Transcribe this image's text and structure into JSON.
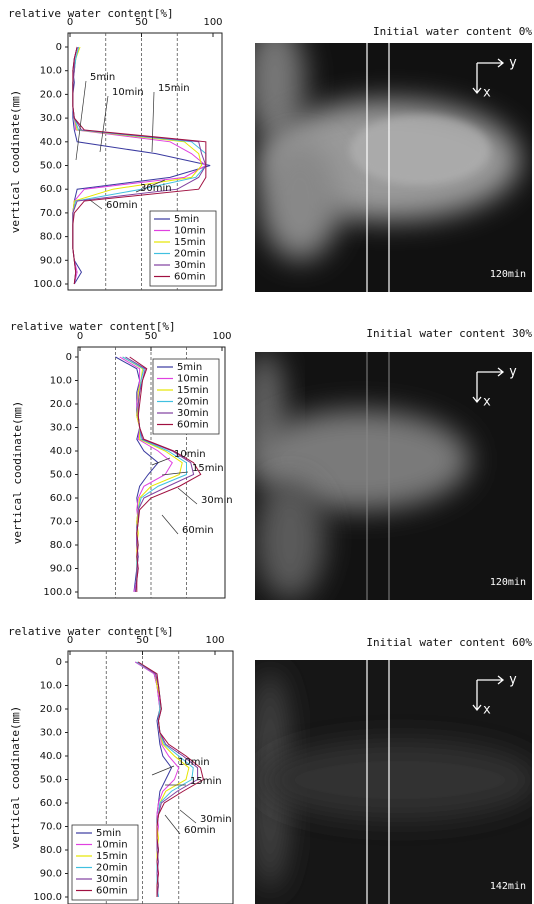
{
  "chart_data": [
    {
      "type": "line",
      "title": "relative water content[%]",
      "y_label": "vertical coodinate(㎜)",
      "xlim": [
        0,
        100
      ],
      "xticks": [
        0,
        50,
        100
      ],
      "grid_x": [
        25,
        50,
        75
      ],
      "ylim": [
        0,
        100
      ],
      "yticks": [
        0,
        {
          "value": 10,
          "label": "10.0"
        },
        {
          "value": 20,
          "label": "20.0"
        },
        {
          "value": 30,
          "label": "30.0"
        },
        {
          "value": 40,
          "label": "40.0"
        },
        {
          "value": 50,
          "label": "50.0"
        },
        {
          "value": 60,
          "label": "60.0"
        },
        {
          "value": 70,
          "label": "70.0"
        },
        {
          "value": 80,
          "label": "80.0"
        },
        {
          "value": 90,
          "label": "90.0"
        },
        {
          "value": 100,
          "label": "100.0"
        }
      ],
      "legend": "lower right",
      "y": [
        0,
        5,
        10,
        15,
        20,
        25,
        30,
        35,
        40,
        45,
        50,
        55,
        60,
        65,
        70,
        75,
        80,
        85,
        90,
        95,
        100
      ],
      "series": [
        {
          "name": "5min",
          "color": "#3a3aa0",
          "values": [
            5,
            3,
            2,
            3,
            2,
            2,
            2,
            3,
            5,
            60,
            98,
            70,
            5,
            3,
            2,
            2,
            2,
            2,
            3,
            8,
            3
          ]
        },
        {
          "name": "10min",
          "color": "#e040e0",
          "values": [
            6,
            4,
            3,
            2,
            2,
            2,
            3,
            4,
            70,
            85,
            95,
            80,
            10,
            3,
            2,
            2,
            2,
            2,
            3,
            5,
            3
          ]
        },
        {
          "name": "15min",
          "color": "#e6e600",
          "values": [
            7,
            4,
            3,
            2,
            2,
            2,
            3,
            5,
            80,
            90,
            92,
            85,
            30,
            3,
            2,
            2,
            2,
            2,
            3,
            4,
            3
          ]
        },
        {
          "name": "20min",
          "color": "#40c0e0",
          "values": [
            6,
            4,
            3,
            2,
            2,
            2,
            3,
            6,
            85,
            95,
            95,
            88,
            50,
            4,
            2,
            2,
            2,
            2,
            3,
            4,
            3
          ]
        },
        {
          "name": "30min",
          "color": "#8040a0",
          "values": [
            5,
            3,
            3,
            2,
            2,
            2,
            3,
            8,
            90,
            92,
            95,
            90,
            75,
            5,
            2,
            2,
            2,
            2,
            3,
            4,
            3
          ]
        },
        {
          "name": "60min",
          "color": "#a01040",
          "values": [
            5,
            3,
            2,
            2,
            2,
            2,
            3,
            10,
            95,
            95,
            95,
            95,
            90,
            10,
            3,
            2,
            2,
            2,
            3,
            4,
            3
          ]
        }
      ]
    },
    {
      "type": "line",
      "title": "relative water content[%]",
      "y_label": "vertical coodinate(㎜)",
      "xlim": [
        0,
        100
      ],
      "xticks": [
        0,
        50,
        100
      ],
      "grid_x": [
        25,
        50,
        75
      ],
      "ylim": [
        0,
        100
      ],
      "yticks": [
        0,
        {
          "value": 10,
          "label": "10.0"
        },
        {
          "value": 20,
          "label": "20.0"
        },
        {
          "value": 30,
          "label": "30.0"
        },
        {
          "value": 40,
          "label": "40.0"
        },
        {
          "value": 50,
          "label": "50.0"
        },
        {
          "value": 60,
          "label": "60.0"
        },
        {
          "value": 70,
          "label": "70.0"
        },
        {
          "value": 80,
          "label": "80.0"
        },
        {
          "value": 90,
          "label": "90.0"
        },
        {
          "value": 100,
          "label": "100.0"
        }
      ],
      "legend": "upper right",
      "y": [
        0,
        5,
        10,
        15,
        20,
        25,
        30,
        35,
        40,
        45,
        50,
        55,
        60,
        65,
        70,
        75,
        80,
        85,
        90,
        95,
        100
      ],
      "series": [
        {
          "name": "5min",
          "color": "#3a3aa0",
          "values": [
            25,
            40,
            42,
            40,
            40,
            40,
            42,
            40,
            45,
            55,
            48,
            42,
            40,
            41,
            40,
            40,
            40,
            41,
            40,
            39,
            38
          ]
        },
        {
          "name": "10min",
          "color": "#e040e0",
          "values": [
            28,
            42,
            42,
            41,
            40,
            41,
            42,
            41,
            55,
            65,
            60,
            45,
            41,
            40,
            41,
            40,
            40,
            40,
            41,
            40,
            38
          ]
        },
        {
          "name": "15min",
          "color": "#e6e600",
          "values": [
            30,
            44,
            43,
            41,
            41,
            40,
            42,
            42,
            60,
            72,
            70,
            50,
            42,
            41,
            40,
            41,
            40,
            40,
            40,
            40,
            39
          ]
        },
        {
          "name": "20min",
          "color": "#40c0e0",
          "values": [
            30,
            45,
            43,
            42,
            41,
            41,
            42,
            43,
            62,
            75,
            75,
            55,
            43,
            41,
            41,
            40,
            41,
            40,
            40,
            40,
            39
          ]
        },
        {
          "name": "30min",
          "color": "#8040a0",
          "values": [
            32,
            46,
            44,
            42,
            41,
            41,
            42,
            44,
            65,
            78,
            80,
            62,
            45,
            41,
            41,
            40,
            40,
            41,
            40,
            40,
            39
          ]
        },
        {
          "name": "60min",
          "color": "#a01040",
          "values": [
            35,
            47,
            44,
            43,
            42,
            41,
            42,
            45,
            66,
            80,
            85,
            70,
            50,
            42,
            41,
            40,
            41,
            40,
            41,
            40,
            40
          ]
        }
      ]
    },
    {
      "type": "line",
      "title": "relative water content[%]",
      "y_label": "vertical coodinate(㎜)",
      "xlim": [
        0,
        100
      ],
      "xticks": [
        0,
        50,
        100
      ],
      "grid_x": [
        25,
        50,
        75
      ],
      "ylim": [
        0,
        100
      ],
      "yticks": [
        0,
        {
          "value": 10,
          "label": "10.0"
        },
        {
          "value": 20,
          "label": "20.0"
        },
        {
          "value": 30,
          "label": "30.0"
        },
        {
          "value": 40,
          "label": "40.0"
        },
        {
          "value": 50,
          "label": "50.0"
        },
        {
          "value": 60,
          "label": "60.0"
        },
        {
          "value": 70,
          "label": "70.0"
        },
        {
          "value": 80,
          "label": "80.0"
        },
        {
          "value": 90,
          "label": "90.0"
        },
        {
          "value": 100,
          "label": "100.0"
        }
      ],
      "legend": "lower left",
      "y": [
        0,
        5,
        10,
        15,
        20,
        25,
        30,
        35,
        40,
        45,
        50,
        55,
        60,
        65,
        70,
        75,
        80,
        85,
        90,
        95,
        100
      ],
      "series": [
        {
          "name": "5min",
          "color": "#3a3aa0",
          "values": [
            45,
            58,
            60,
            61,
            62,
            60,
            61,
            62,
            64,
            70,
            66,
            62,
            61,
            60,
            60,
            60,
            61,
            60,
            60,
            61,
            60
          ]
        },
        {
          "name": "10min",
          "color": "#e040e0",
          "values": [
            45,
            58,
            60,
            61,
            62,
            61,
            62,
            63,
            68,
            75,
            72,
            64,
            61,
            60,
            61,
            60,
            60,
            60,
            61,
            60,
            61
          ]
        },
        {
          "name": "15min",
          "color": "#e6e600",
          "values": [
            46,
            59,
            60,
            62,
            62,
            61,
            62,
            64,
            72,
            82,
            80,
            66,
            62,
            61,
            60,
            61,
            60,
            60,
            60,
            61,
            60
          ]
        },
        {
          "name": "20min",
          "color": "#40c0e0",
          "values": [
            46,
            59,
            61,
            62,
            62,
            61,
            62,
            65,
            75,
            85,
            84,
            70,
            62,
            61,
            60,
            60,
            61,
            60,
            60,
            60,
            61
          ]
        },
        {
          "name": "30min",
          "color": "#8040a0",
          "values": [
            47,
            59,
            61,
            62,
            63,
            61,
            62,
            66,
            78,
            88,
            88,
            74,
            63,
            61,
            60,
            60,
            60,
            61,
            60,
            61,
            60
          ]
        },
        {
          "name": "60min",
          "color": "#a01040",
          "values": [
            47,
            60,
            61,
            62,
            63,
            61,
            62,
            68,
            80,
            90,
            92,
            78,
            65,
            61,
            60,
            60,
            61,
            60,
            61,
            60,
            60
          ]
        }
      ]
    }
  ],
  "images": [
    {
      "caption": "Initial water content 0%",
      "y_label": "y",
      "x_label": "x",
      "time": "120min"
    },
    {
      "caption": "Initial water content 30%",
      "y_label": "y",
      "x_label": "x",
      "time": "120min"
    },
    {
      "caption": "Initial water content 60%",
      "y_label": "y",
      "x_label": "x",
      "time": "142min"
    }
  ]
}
